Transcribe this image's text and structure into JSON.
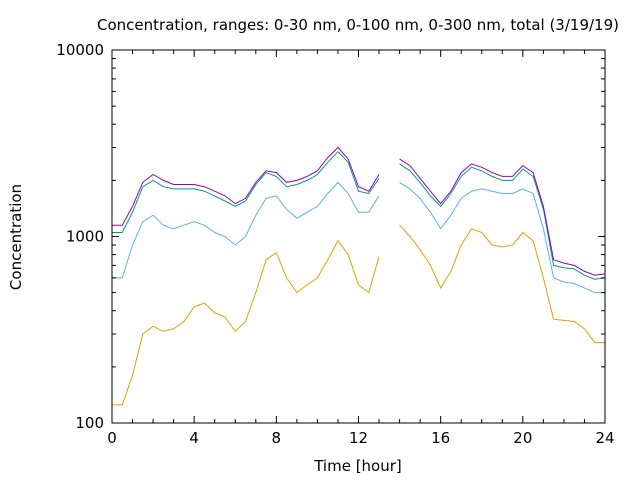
{
  "chart_data": {
    "type": "line",
    "title": "Concentration, ranges: 0-30 nm, 0-100 nm, 0-300 nm, total (3/19/19)",
    "xlabel": "Time [hour]",
    "ylabel": "Concentration",
    "xlim": [
      0,
      24
    ],
    "ylim": [
      100,
      10000
    ],
    "yscale": "log",
    "grid": false,
    "legend": "none",
    "x_ticks": [
      0,
      4,
      8,
      12,
      16,
      20,
      24
    ],
    "x_tick_labels": [
      "0",
      "4",
      "8",
      "12",
      "16",
      "20",
      "24"
    ],
    "y_ticks": [
      100,
      1000,
      10000
    ],
    "y_tick_labels": [
      "100",
      "1000",
      "10000"
    ],
    "x": [
      0,
      0.5,
      1,
      1.5,
      2,
      2.5,
      3,
      3.5,
      4,
      4.5,
      5,
      5.5,
      6,
      6.5,
      7,
      7.5,
      8,
      8.5,
      9,
      9.5,
      10,
      10.5,
      11,
      11.5,
      12,
      12.5,
      13,
      13.5,
      14,
      14.5,
      15,
      15.5,
      16,
      16.5,
      17,
      17.5,
      18,
      18.5,
      19,
      19.5,
      20,
      20.5,
      21,
      21.5,
      22,
      22.5,
      23,
      23.5,
      24
    ],
    "series": [
      {
        "color": "#e69f00",
        "values": [
          125,
          125,
          180,
          300,
          330,
          310,
          320,
          350,
          420,
          440,
          390,
          370,
          310,
          350,
          500,
          750,
          820,
          600,
          500,
          550,
          600,
          750,
          950,
          800,
          550,
          500,
          780,
          null,
          1150,
          1000,
          850,
          700,
          530,
          650,
          900,
          1100,
          1050,
          900,
          880,
          900,
          1050,
          950,
          600,
          360,
          355,
          350,
          320,
          270,
          270
        ]
      },
      {
        "color": "#56b4e9",
        "values": [
          600,
          600,
          900,
          1200,
          1300,
          1150,
          1100,
          1150,
          1200,
          1150,
          1050,
          1000,
          900,
          1000,
          1300,
          1600,
          1650,
          1400,
          1250,
          1350,
          1450,
          1700,
          1950,
          1700,
          1350,
          1350,
          1650,
          null,
          1950,
          1800,
          1600,
          1350,
          1100,
          1300,
          1600,
          1750,
          1800,
          1750,
          1700,
          1700,
          1800,
          1700,
          1100,
          600,
          570,
          560,
          530,
          500,
          500
        ]
      },
      {
        "color": "#009e73",
        "values": [
          1050,
          1050,
          1350,
          1850,
          2000,
          1850,
          1800,
          1800,
          1800,
          1750,
          1650,
          1550,
          1450,
          1550,
          1900,
          2200,
          2100,
          1850,
          1900,
          2000,
          2150,
          2500,
          2850,
          2500,
          1750,
          1700,
          2050,
          null,
          2450,
          2250,
          1950,
          1650,
          1450,
          1700,
          2100,
          2350,
          2250,
          2100,
          2000,
          2000,
          2300,
          2100,
          1400,
          700,
          680,
          670,
          620,
          590,
          600
        ]
      },
      {
        "color": "#9400d3",
        "values": [
          1150,
          1150,
          1450,
          1950,
          2150,
          2000,
          1900,
          1900,
          1900,
          1850,
          1750,
          1650,
          1500,
          1600,
          1950,
          2250,
          2200,
          1950,
          2000,
          2100,
          2250,
          2650,
          3000,
          2600,
          1850,
          1750,
          2150,
          null,
          2600,
          2400,
          2050,
          1750,
          1500,
          1750,
          2200,
          2450,
          2350,
          2200,
          2100,
          2100,
          2400,
          2200,
          1450,
          750,
          720,
          700,
          650,
          620,
          630
        ]
      }
    ]
  }
}
